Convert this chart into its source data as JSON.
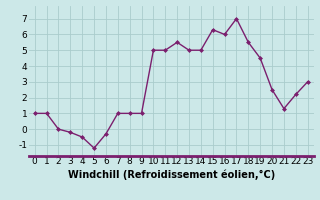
{
  "x": [
    0,
    1,
    2,
    3,
    4,
    5,
    6,
    7,
    8,
    9,
    10,
    11,
    12,
    13,
    14,
    15,
    16,
    17,
    18,
    19,
    20,
    21,
    22,
    23
  ],
  "y": [
    1,
    1,
    0,
    -0.2,
    -0.5,
    -1.2,
    -0.3,
    1,
    1,
    1,
    5,
    5,
    5.5,
    5,
    5,
    6.3,
    6,
    7,
    5.5,
    4.5,
    2.5,
    1.3,
    2.2,
    3
  ],
  "line_color": "#7b1f6e",
  "marker": "D",
  "marker_size": 2.0,
  "bg_color": "#cce8e8",
  "grid_color": "#aacccc",
  "xlabel": "Windchill (Refroidissement éolien,°C)",
  "xlabel_fontsize": 7,
  "yticks": [
    -1,
    0,
    1,
    2,
    3,
    4,
    5,
    6,
    7
  ],
  "xticks": [
    0,
    1,
    2,
    3,
    4,
    5,
    6,
    7,
    8,
    9,
    10,
    11,
    12,
    13,
    14,
    15,
    16,
    17,
    18,
    19,
    20,
    21,
    22,
    23
  ],
  "xlim": [
    -0.5,
    23.5
  ],
  "ylim": [
    -1.7,
    7.8
  ],
  "tick_fontsize": 6.5,
  "line_width": 1.0,
  "spine_color": "#7b1f6e"
}
